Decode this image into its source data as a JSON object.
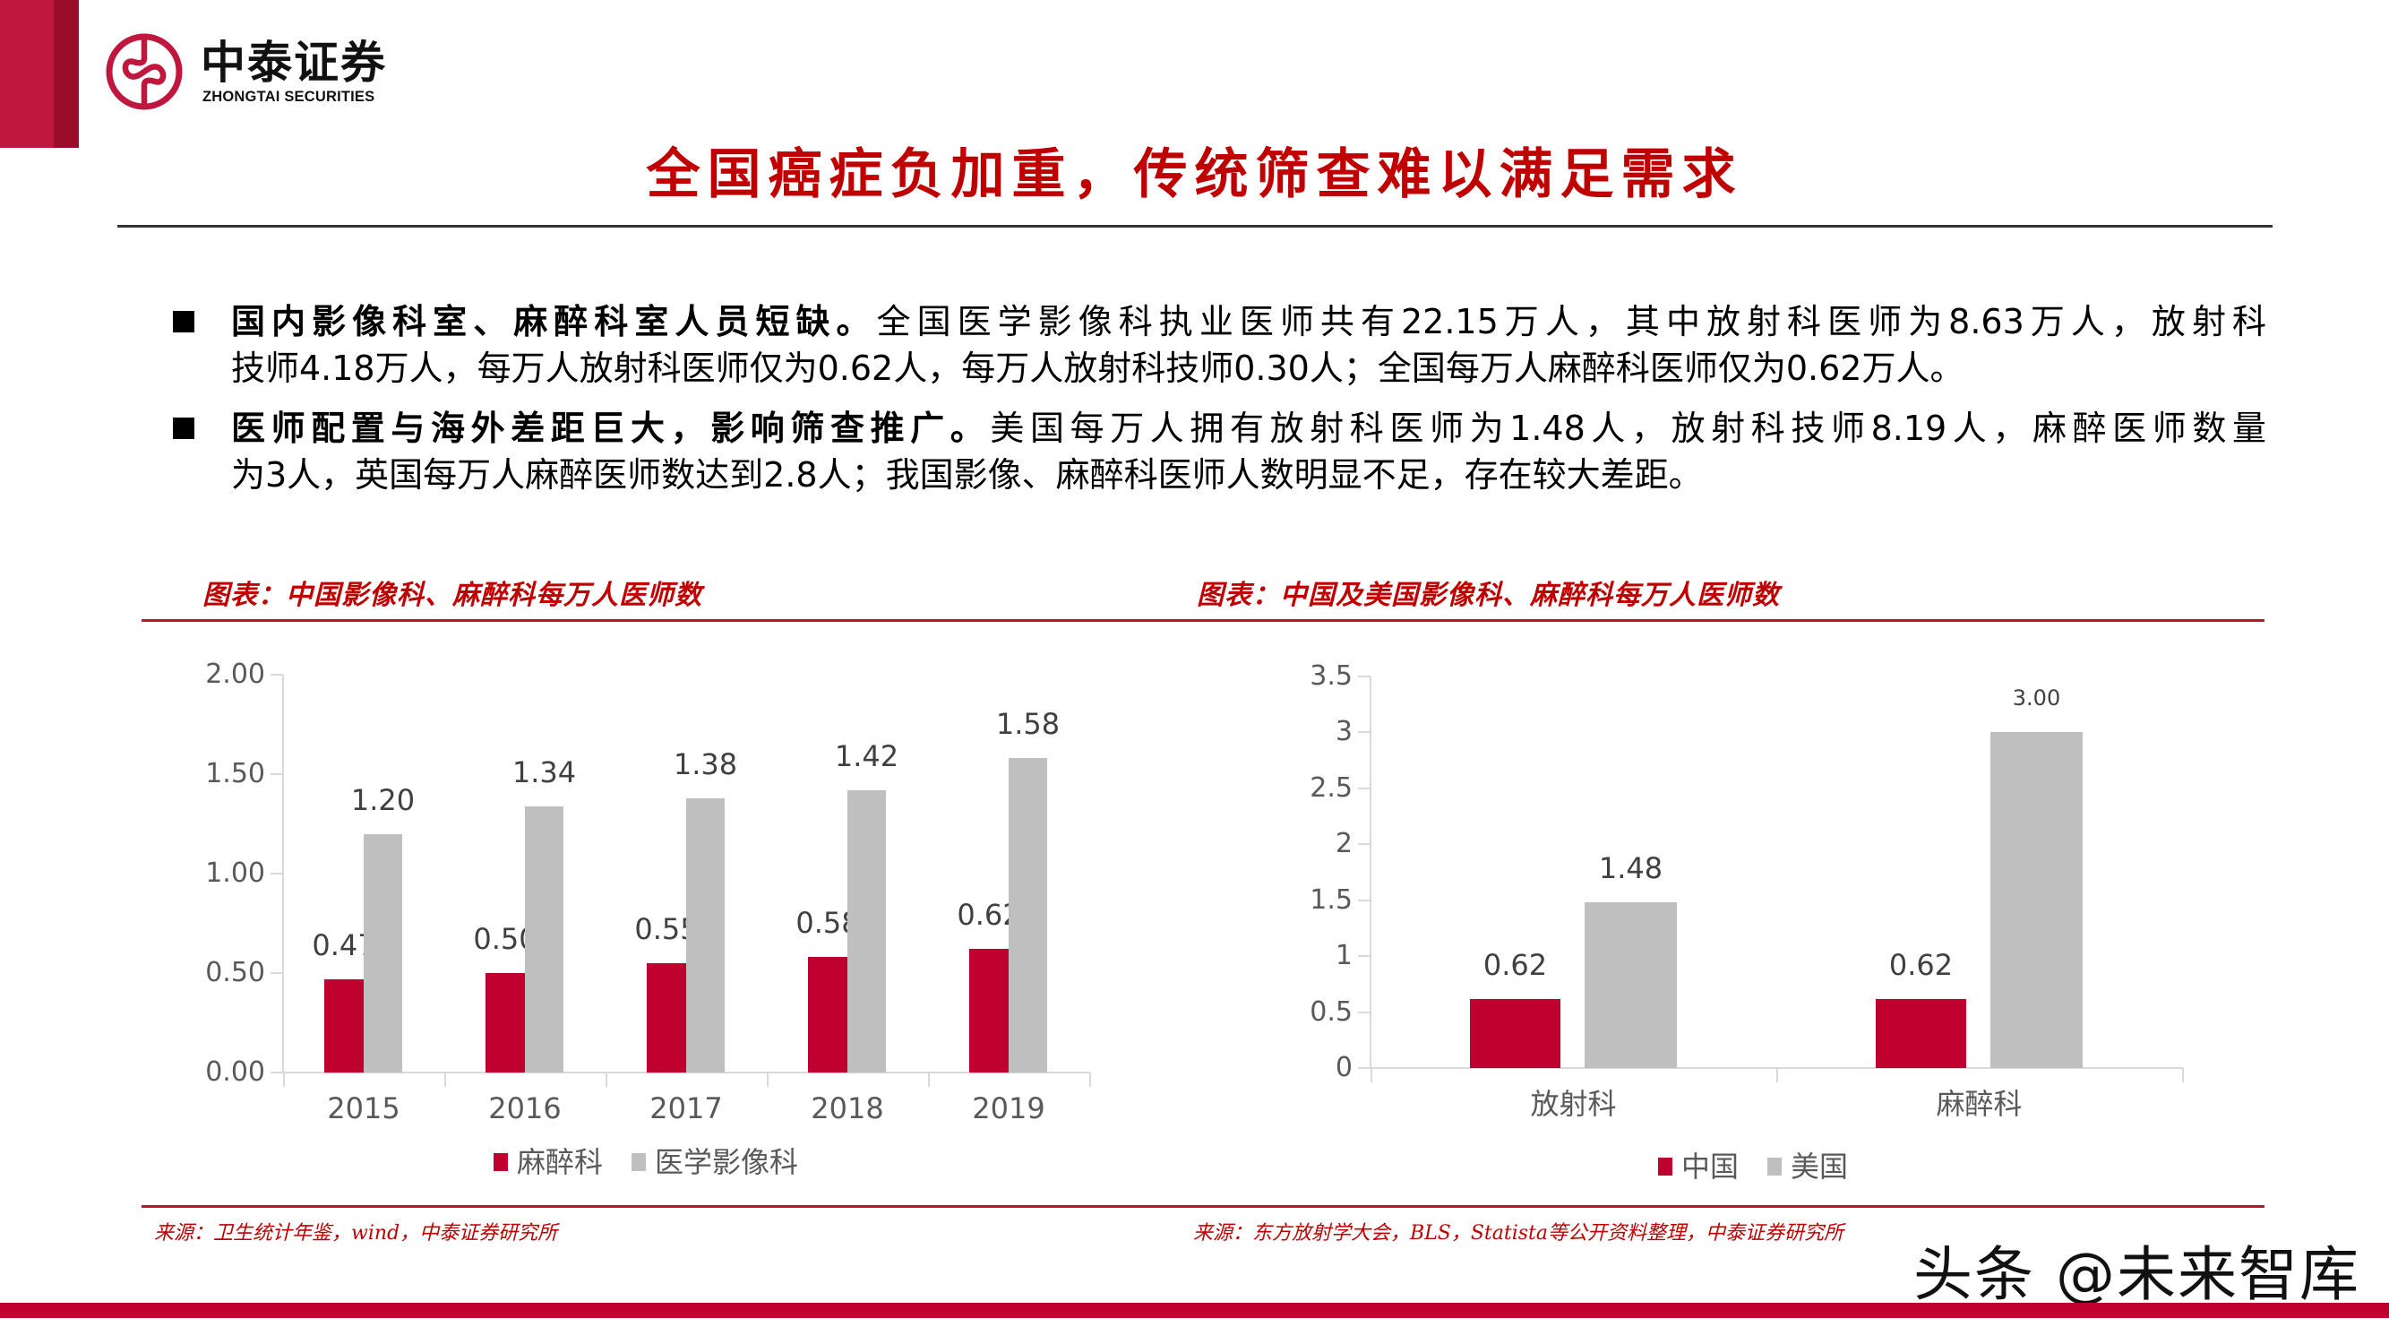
{
  "header": {
    "brand_cn": "中泰证券",
    "brand_en": "ZHONGTAI SECURITIES",
    "title": "全国癌症负加重，传统筛查难以满足需求"
  },
  "bullets": [
    {
      "lines": [
        {
          "bold": "国内影像科室、麻醉科室人员短缺。",
          "text": "全国医学影像科执业医师共有22.15万人，其中放射科医师为8.63万人，放射科"
        },
        {
          "bold": "",
          "text": "技师4.18万人，每万人放射科医师仅为0.62人，每万人放射科技师0.30人；全国每万人麻醉科医师仅为0.62万人。"
        }
      ]
    },
    {
      "lines": [
        {
          "bold": "医师配置与海外差距巨大，影响筛查推广。",
          "text": "美国每万人拥有放射科医师为1.48人，放射科技师8.19人，麻醉医师数量"
        },
        {
          "bold": "",
          "text": "为3人，英国每万人麻醉医师数达到2.8人；我国影像、麻醉科医师人数明显不足，存在较大差距。"
        }
      ]
    }
  ],
  "figures": {
    "left": {
      "title": "图表：中国影像科、麻醉科每万人医师数",
      "source": "来源：卫生统计年鉴，wind，中泰证券研究所"
    },
    "right": {
      "title": "图表：中国及美国影像科、麻醉科每万人医师数",
      "source": "来源：东方放射学大会，BLS，Statista等公开资料整理，中泰证券研究所"
    }
  },
  "colors": {
    "brand_red": "#c0002f",
    "title_red": "#c00000",
    "series_gray": "#bfbfbf"
  },
  "watermark": "头条 @未来智库",
  "chart_data": [
    {
      "type": "bar",
      "title": "图表：中国影像科、麻醉科每万人医师数",
      "categories": [
        "2015",
        "2016",
        "2017",
        "2018",
        "2019"
      ],
      "series": [
        {
          "name": "麻醉科",
          "color": "#c0002f",
          "values": [
            0.47,
            0.5,
            0.55,
            0.58,
            0.62
          ],
          "labels": [
            "0.47",
            "0.50",
            "0.55",
            "0.58",
            "0.62"
          ]
        },
        {
          "name": "医学影像科",
          "color": "#bfbfbf",
          "values": [
            1.2,
            1.34,
            1.38,
            1.42,
            1.58
          ],
          "labels": [
            "1.20",
            "1.34",
            "1.38",
            "1.42",
            "1.58"
          ]
        }
      ],
      "yticks": [
        "0.00",
        "0.50",
        "1.00",
        "1.50",
        "2.00"
      ],
      "ylim": [
        0,
        2.0
      ],
      "xlabel": "",
      "ylabel": "",
      "grid": false,
      "legend_position": "bottom"
    },
    {
      "type": "bar",
      "title": "图表：中国及美国影像科、麻醉科每万人医师数",
      "categories": [
        "放射科",
        "麻醉科"
      ],
      "series": [
        {
          "name": "中国",
          "color": "#c0002f",
          "values": [
            0.62,
            0.62
          ],
          "labels": [
            "0.62",
            "0.62"
          ]
        },
        {
          "name": "美国",
          "color": "#bfbfbf",
          "values": [
            1.48,
            3.0
          ],
          "labels": [
            "1.48",
            "3.00"
          ]
        }
      ],
      "yticks": [
        "0",
        "0.5",
        "1",
        "1.5",
        "2",
        "2.5",
        "3",
        "3.5"
      ],
      "ylim": [
        0,
        3.5
      ],
      "xlabel": "",
      "ylabel": "",
      "grid": false,
      "legend_position": "bottom"
    }
  ]
}
